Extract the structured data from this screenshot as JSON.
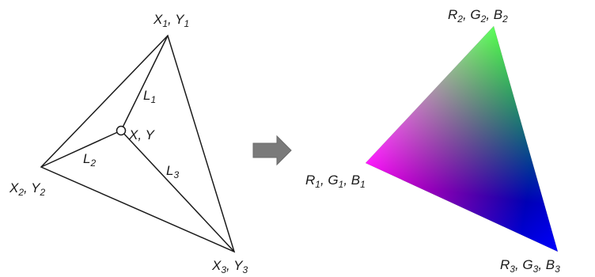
{
  "left_diagram": {
    "vertex_1": {
      "main": "X",
      "sub": "1",
      "sep": ", ",
      "main2": "Y",
      "sub2": "1"
    },
    "vertex_2": {
      "main": "X",
      "sub": "2",
      "sep": ", ",
      "main2": "Y",
      "sub2": "2"
    },
    "vertex_3": {
      "main": "X",
      "sub": "3",
      "sep": ", ",
      "main2": "Y",
      "sub2": "3"
    },
    "center_point": "X, Y",
    "lengths": [
      {
        "main": "L",
        "sub": "1"
      },
      {
        "main": "L",
        "sub": "2"
      },
      {
        "main": "L",
        "sub": "3"
      }
    ]
  },
  "arrow": {
    "icon": "right-arrow-icon",
    "color": "#7a7a7a"
  },
  "right_diagram": {
    "vertex_1": {
      "r": "R",
      "r_sub": "1",
      "g": "G",
      "g_sub": "1",
      "b": "B",
      "b_sub": "1",
      "color": "#ff00ff"
    },
    "vertex_2": {
      "r": "R",
      "r_sub": "2",
      "g": "G",
      "g_sub": "2",
      "b": "B",
      "b_sub": "2",
      "color": "#00ff00"
    },
    "vertex_3": {
      "r": "R",
      "r_sub": "3",
      "g": "G",
      "g_sub": "3",
      "b": "B",
      "b_sub": "3",
      "color": "#0000ff"
    }
  }
}
